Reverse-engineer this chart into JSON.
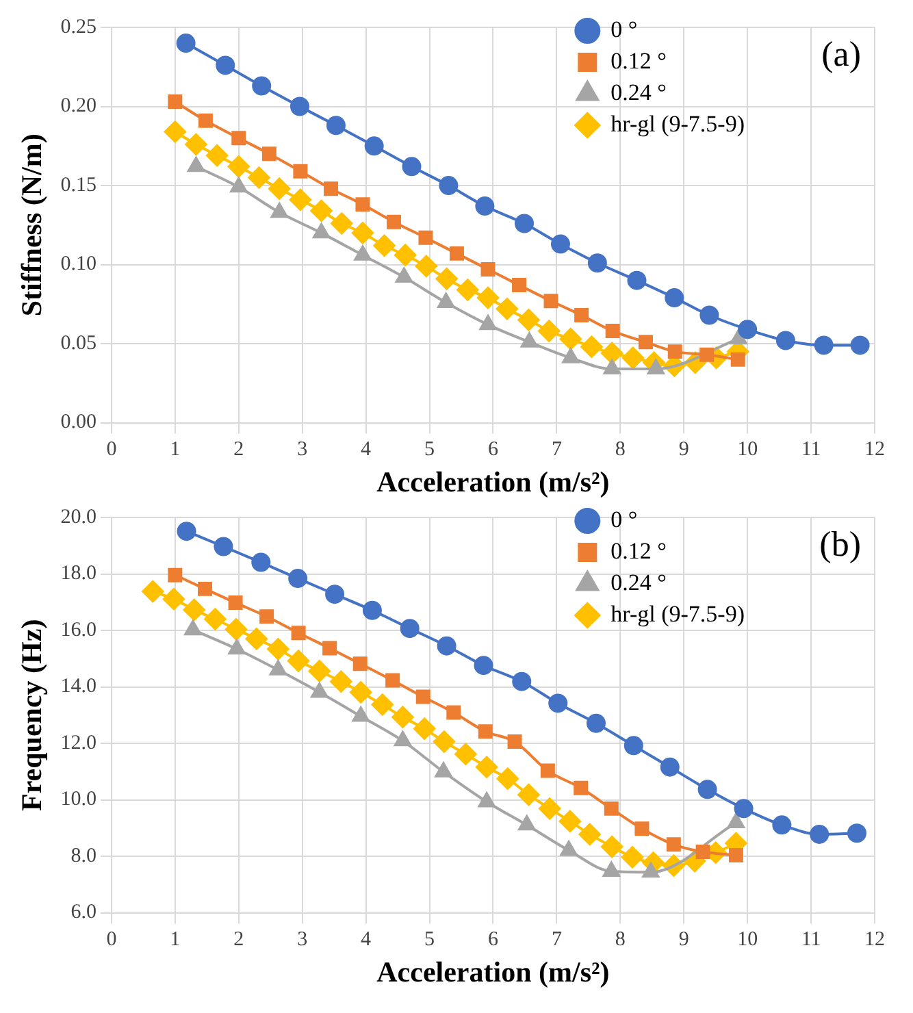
{
  "chart_data": [
    {
      "type": "line",
      "xlabel": "Acceleration (m/s²)",
      "ylabel": "Stiffness (N/m)",
      "annotations": [
        "(a)"
      ],
      "xlim": [
        0,
        12
      ],
      "xticks": [
        0,
        1,
        2,
        3,
        4,
        5,
        6,
        7,
        8,
        9,
        10,
        11,
        12
      ],
      "ylim": [
        0,
        0.25
      ],
      "yticks": [
        {
          "value": 0,
          "label": "0.00"
        },
        {
          "value": 0.05,
          "label": "0.05"
        },
        {
          "value": 0.1,
          "label": "0.10"
        },
        {
          "value": 0.15,
          "label": "0.15"
        },
        {
          "value": 0.2,
          "label": "0.20"
        },
        {
          "value": 0.25,
          "label": "0.25"
        }
      ],
      "grid": true,
      "legend": "top right",
      "line_style": "solid",
      "series": [
        {
          "name": "0 °",
          "color": "#4472c4",
          "marker": "circle",
          "x": [
            1.17,
            1.79,
            2.36,
            2.96,
            3.53,
            4.13,
            4.72,
            5.3,
            5.87,
            6.49,
            7.06,
            7.64,
            8.26,
            8.85,
            9.4,
            10.0,
            10.6,
            11.2,
            11.77
          ],
          "values": [
            0.24,
            0.226,
            0.213,
            0.2,
            0.188,
            0.175,
            0.162,
            0.15,
            0.137,
            0.126,
            0.113,
            0.101,
            0.09,
            0.079,
            0.068,
            0.059,
            0.052,
            0.049,
            0.049
          ]
        },
        {
          "name": "0.12 °",
          "color": "#ed7d31",
          "marker": "square",
          "x": [
            1.0,
            1.48,
            2.0,
            2.48,
            2.97,
            3.45,
            3.95,
            4.44,
            4.94,
            5.43,
            5.92,
            6.41,
            6.91,
            7.39,
            7.88,
            8.4,
            8.86,
            9.36,
            9.85
          ],
          "values": [
            0.203,
            0.191,
            0.18,
            0.17,
            0.159,
            0.148,
            0.138,
            0.127,
            0.117,
            0.107,
            0.097,
            0.087,
            0.077,
            0.068,
            0.058,
            0.051,
            0.045,
            0.043,
            0.04
          ]
        },
        {
          "name": "0.24 °",
          "color": "#a5a5a5",
          "marker": "triangle",
          "x": [
            1.33,
            2.0,
            2.64,
            3.3,
            3.95,
            4.6,
            5.26,
            5.92,
            6.57,
            7.22,
            7.87,
            8.56,
            9.86
          ],
          "values": [
            0.162,
            0.149,
            0.133,
            0.12,
            0.106,
            0.092,
            0.076,
            0.062,
            0.051,
            0.041,
            0.034,
            0.034,
            0.053
          ]
        },
        {
          "name": "hr-gl (9-7.5-9)",
          "color": "#ffc000",
          "marker": "diamond",
          "x": [
            1.0,
            1.33,
            1.66,
            2.0,
            2.32,
            2.64,
            2.97,
            3.3,
            3.62,
            3.95,
            4.29,
            4.62,
            4.95,
            5.27,
            5.6,
            5.92,
            6.22,
            6.56,
            6.88,
            7.22,
            7.55,
            7.87,
            8.2,
            8.53,
            8.85,
            9.18,
            9.51,
            9.85
          ],
          "values": [
            0.184,
            0.176,
            0.169,
            0.162,
            0.155,
            0.148,
            0.141,
            0.134,
            0.126,
            0.12,
            0.112,
            0.106,
            0.099,
            0.091,
            0.084,
            0.079,
            0.072,
            0.065,
            0.058,
            0.053,
            0.048,
            0.044,
            0.041,
            0.038,
            0.036,
            0.038,
            0.041,
            0.045
          ]
        }
      ]
    },
    {
      "type": "line",
      "xlabel": "Acceleration (m/s²)",
      "ylabel": "Frequency (Hz)",
      "annotations": [
        "(b)"
      ],
      "xlim": [
        0,
        12
      ],
      "xticks": [
        0,
        1,
        2,
        3,
        4,
        5,
        6,
        7,
        8,
        9,
        10,
        11,
        12
      ],
      "ylim": [
        6,
        20
      ],
      "yticks": [
        {
          "value": 6,
          "label": "6.0"
        },
        {
          "value": 8,
          "label": "8.0"
        },
        {
          "value": 10,
          "label": "10.0"
        },
        {
          "value": 12,
          "label": "12.0"
        },
        {
          "value": 14,
          "label": "14.0"
        },
        {
          "value": 16,
          "label": "16.0"
        },
        {
          "value": 18,
          "label": "18.0"
        },
        {
          "value": 20,
          "label": "20.0"
        }
      ],
      "grid": true,
      "legend": "top right",
      "line_style": "solid",
      "series": [
        {
          "name": "0 °",
          "color": "#4472c4",
          "marker": "circle",
          "x": [
            1.18,
            1.76,
            2.35,
            2.93,
            3.51,
            4.1,
            4.69,
            5.27,
            5.85,
            6.45,
            7.02,
            7.62,
            8.21,
            8.78,
            9.37,
            9.94,
            10.54,
            11.13,
            11.72
          ],
          "values": [
            19.51,
            18.97,
            18.41,
            17.84,
            17.28,
            16.71,
            16.07,
            15.45,
            14.76,
            14.19,
            13.42,
            12.71,
            11.92,
            11.16,
            10.37,
            9.69,
            9.11,
            8.78,
            8.82
          ]
        },
        {
          "name": "0.12 °",
          "color": "#ed7d31",
          "marker": "square",
          "x": [
            1.0,
            1.47,
            1.95,
            2.44,
            2.94,
            3.43,
            3.91,
            4.42,
            4.9,
            5.38,
            5.88,
            6.34,
            6.86,
            7.38,
            7.86,
            8.34,
            8.84,
            9.3,
            9.82
          ],
          "values": [
            17.96,
            17.47,
            16.98,
            16.49,
            15.91,
            15.37,
            14.82,
            14.23,
            13.65,
            13.09,
            12.42,
            12.06,
            11.03,
            10.42,
            9.69,
            8.98,
            8.42,
            8.16,
            8.04
          ]
        },
        {
          "name": "0.24 °",
          "color": "#a5a5a5",
          "marker": "triangle",
          "x": [
            1.28,
            1.97,
            2.62,
            3.27,
            3.92,
            4.58,
            5.22,
            5.9,
            6.53,
            7.19,
            7.86,
            8.48,
            9.82
          ],
          "values": [
            16.02,
            15.34,
            14.6,
            13.81,
            12.96,
            12.09,
            10.99,
            9.93,
            9.11,
            8.21,
            7.47,
            7.44,
            9.19
          ]
        },
        {
          "name": "hr-gl (9-7.5-9)",
          "color": "#ffc000",
          "marker": "diamond",
          "x": [
            0.65,
            0.98,
            1.3,
            1.63,
            1.96,
            2.28,
            2.62,
            2.94,
            3.27,
            3.61,
            3.92,
            4.26,
            4.58,
            4.92,
            5.23,
            5.57,
            5.9,
            6.23,
            6.56,
            6.89,
            7.21,
            7.52,
            7.87,
            8.19,
            8.52,
            8.84,
            9.17,
            9.5,
            9.82
          ],
          "values": [
            17.38,
            17.11,
            16.73,
            16.4,
            16.04,
            15.7,
            15.34,
            14.92,
            14.56,
            14.19,
            13.81,
            13.37,
            12.93,
            12.52,
            12.06,
            11.62,
            11.16,
            10.75,
            10.18,
            9.69,
            9.24,
            8.78,
            8.34,
            7.97,
            7.77,
            7.67,
            7.83,
            8.13,
            8.46
          ]
        }
      ]
    }
  ]
}
